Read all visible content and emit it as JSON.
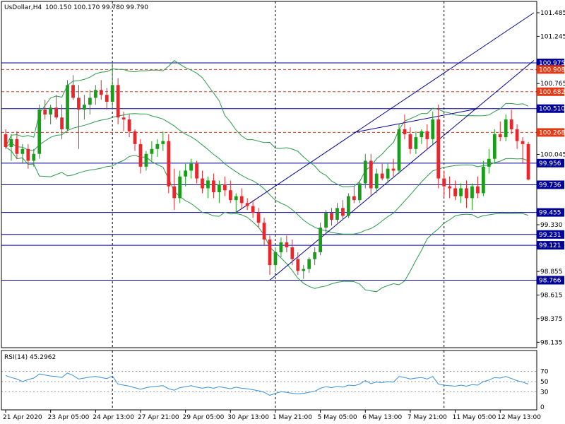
{
  "header": {
    "symbol_label": "UsDollar,H4",
    "ohlc_label": "100.150 100.170 99.780 99.790"
  },
  "rsi_panel": {
    "label": "RSI(14) 45.2962",
    "levels": [
      "70",
      "50",
      "30",
      "0"
    ]
  },
  "colors": {
    "bull_candle": "#1a9e1a",
    "bear_candle": "#e8262b",
    "bollinger": "#2a9a4a",
    "level_line": "#000099",
    "dash_line": "#d04020",
    "tag_blue": "#000099",
    "tag_red": "#e23a17",
    "rsi_line": "#3a8fd6"
  },
  "chart_data": {
    "type": "candlestick",
    "price_axis": {
      "ticks": [
        "101.485",
        "101.245",
        "100.765",
        "100.045",
        "99.330",
        "98.855",
        "98.615",
        "98.375",
        "98.135"
      ],
      "ylim": [
        98.08,
        101.6
      ]
    },
    "time_axis": {
      "labels": [
        "21 Apr 2020",
        "23 Apr 05:00",
        "24 Apr 13:00",
        "27 Apr 21:00",
        "29 Apr 05:00",
        "30 Apr 13:00",
        "1 May 21:00",
        "5 May 05:00",
        "6 May 13:00",
        "7 May 21:00",
        "11 May 05:00",
        "12 May 13:00"
      ],
      "label_bars": [
        0,
        8,
        16,
        24,
        32,
        40,
        48,
        56,
        64,
        72,
        80,
        88
      ]
    },
    "session_separators": [
      19,
      48,
      78
    ],
    "levels": [
      {
        "value": 100.975,
        "label": "100.975",
        "style": "solid"
      },
      {
        "value": 100.908,
        "label": "100.908",
        "style": "dashed"
      },
      {
        "value": 100.682,
        "label": "100.682",
        "style": "dashed"
      },
      {
        "value": 100.51,
        "label": "100.510",
        "style": "solid"
      },
      {
        "value": 100.268,
        "label": "100.268",
        "style": "dashed"
      },
      {
        "value": 99.956,
        "label": "99.956",
        "style": "solid"
      },
      {
        "value": 99.736,
        "label": "99.736",
        "style": "solid"
      },
      {
        "value": 99.455,
        "label": "99.455",
        "style": "solid"
      },
      {
        "value": 99.231,
        "label": "99.231",
        "style": "solid"
      },
      {
        "value": 99.121,
        "label": "99.121",
        "style": "solid"
      },
      {
        "value": 98.766,
        "label": "98.766",
        "style": "solid"
      }
    ],
    "trend_lines": [
      {
        "from": [
          41,
          99.455
        ],
        "to": [
          94,
          101.485
        ]
      },
      {
        "from": [
          47,
          98.766
        ],
        "to": [
          94,
          101.0
        ]
      },
      {
        "from": [
          62,
          100.268
        ],
        "to": [
          84,
          100.51
        ]
      }
    ],
    "candles": [
      [
        100.25,
        100.3,
        100.1,
        100.12
      ],
      [
        100.12,
        100.25,
        99.98,
        100.2
      ],
      [
        100.2,
        100.28,
        100.0,
        100.05
      ],
      [
        100.05,
        100.15,
        99.95,
        100.1
      ],
      [
        100.1,
        100.15,
        99.9,
        99.98
      ],
      [
        99.98,
        100.1,
        99.92,
        100.05
      ],
      [
        100.05,
        100.55,
        100.0,
        100.5
      ],
      [
        100.5,
        100.6,
        100.4,
        100.45
      ],
      [
        100.45,
        100.55,
        100.35,
        100.52
      ],
      [
        100.52,
        100.65,
        100.4,
        100.42
      ],
      [
        100.42,
        100.55,
        100.2,
        100.3
      ],
      [
        100.3,
        100.8,
        100.28,
        100.75
      ],
      [
        100.75,
        100.85,
        100.6,
        100.62
      ],
      [
        100.62,
        100.75,
        100.1,
        100.5
      ],
      [
        100.5,
        100.65,
        100.4,
        100.55
      ],
      [
        100.55,
        100.7,
        100.45,
        100.62
      ],
      [
        100.62,
        100.75,
        100.55,
        100.7
      ],
      [
        100.7,
        100.8,
        100.6,
        100.65
      ],
      [
        100.65,
        100.72,
        100.5,
        100.58
      ],
      [
        100.58,
        100.98,
        100.5,
        100.75
      ],
      [
        100.75,
        100.82,
        100.35,
        100.42
      ],
      [
        100.42,
        100.48,
        100.28,
        100.4
      ],
      [
        100.4,
        100.45,
        100.22,
        100.28
      ],
      [
        100.28,
        100.3,
        100.08,
        100.15
      ],
      [
        100.15,
        100.2,
        99.85,
        99.92
      ],
      [
        99.92,
        100.08,
        99.88,
        100.05
      ],
      [
        100.05,
        100.18,
        99.98,
        100.1
      ],
      [
        100.1,
        100.2,
        100.02,
        100.15
      ],
      [
        100.15,
        100.28,
        100.08,
        100.18
      ],
      [
        100.18,
        100.25,
        99.65,
        99.72
      ],
      [
        99.72,
        99.9,
        99.48,
        99.6
      ],
      [
        99.6,
        99.88,
        99.55,
        99.82
      ],
      [
        99.82,
        99.95,
        99.72,
        99.88
      ],
      [
        99.88,
        100.0,
        99.8,
        99.95
      ],
      [
        99.95,
        99.98,
        99.75,
        99.8
      ],
      [
        99.8,
        99.88,
        99.65,
        99.7
      ],
      [
        99.7,
        99.82,
        99.6,
        99.78
      ],
      [
        99.78,
        99.85,
        99.6,
        99.66
      ],
      [
        99.66,
        99.78,
        99.55,
        99.74
      ],
      [
        99.74,
        99.82,
        99.62,
        99.68
      ],
      [
        99.68,
        99.78,
        99.55,
        99.58
      ],
      [
        99.58,
        99.65,
        99.45,
        99.62
      ],
      [
        99.62,
        99.7,
        99.5,
        99.55
      ],
      [
        99.55,
        99.6,
        99.48,
        99.52
      ],
      [
        99.52,
        99.58,
        99.4,
        99.45
      ],
      [
        99.45,
        99.5,
        99.3,
        99.35
      ],
      [
        99.35,
        99.4,
        99.12,
        99.18
      ],
      [
        99.18,
        99.22,
        98.82,
        98.92
      ],
      [
        98.92,
        99.1,
        98.85,
        99.05
      ],
      [
        99.05,
        99.2,
        99.0,
        99.15
      ],
      [
        99.15,
        99.22,
        99.05,
        99.1
      ],
      [
        99.1,
        99.18,
        98.92,
        98.98
      ],
      [
        98.98,
        99.05,
        98.82,
        98.86
      ],
      [
        98.86,
        98.92,
        98.78,
        98.88
      ],
      [
        98.88,
        99.0,
        98.84,
        98.98
      ],
      [
        98.98,
        99.1,
        98.92,
        99.05
      ],
      [
        99.05,
        99.35,
        99.02,
        99.3
      ],
      [
        99.3,
        99.48,
        99.25,
        99.45
      ],
      [
        99.45,
        99.5,
        99.32,
        99.38
      ],
      [
        99.38,
        99.55,
        99.35,
        99.5
      ],
      [
        99.5,
        99.58,
        99.38,
        99.42
      ],
      [
        99.42,
        99.65,
        99.4,
        99.62
      ],
      [
        99.62,
        99.72,
        99.55,
        99.58
      ],
      [
        99.58,
        99.78,
        99.55,
        99.75
      ],
      [
        99.75,
        100.05,
        99.7,
        99.98
      ],
      [
        99.98,
        100.05,
        99.62,
        99.7
      ],
      [
        99.7,
        99.9,
        99.65,
        99.85
      ],
      [
        99.85,
        99.95,
        99.78,
        99.8
      ],
      [
        99.8,
        99.95,
        99.75,
        99.9
      ],
      [
        99.9,
        100.0,
        99.82,
        99.88
      ],
      [
        99.88,
        100.35,
        99.85,
        100.3
      ],
      [
        100.3,
        100.45,
        100.2,
        100.25
      ],
      [
        100.25,
        100.32,
        100.05,
        100.1
      ],
      [
        100.1,
        100.28,
        100.05,
        100.22
      ],
      [
        100.22,
        100.3,
        100.15,
        100.28
      ],
      [
        100.28,
        100.35,
        100.1,
        100.2
      ],
      [
        100.2,
        100.48,
        100.15,
        100.4
      ],
      [
        100.4,
        100.55,
        99.7,
        99.8
      ],
      [
        99.8,
        99.88,
        99.62,
        99.72
      ],
      [
        99.72,
        99.82,
        99.6,
        99.7
      ],
      [
        99.7,
        99.78,
        99.58,
        99.62
      ],
      [
        99.62,
        99.75,
        99.55,
        99.7
      ],
      [
        99.7,
        99.78,
        99.5,
        99.6
      ],
      [
        99.6,
        99.75,
        99.48,
        99.72
      ],
      [
        99.72,
        99.82,
        99.6,
        99.65
      ],
      [
        99.65,
        99.98,
        99.62,
        99.92
      ],
      [
        99.92,
        100.1,
        99.85,
        100.0
      ],
      [
        100.0,
        100.3,
        99.95,
        100.25
      ],
      [
        100.25,
        100.38,
        100.18,
        100.22
      ],
      [
        100.22,
        100.45,
        100.18,
        100.4
      ],
      [
        100.4,
        100.5,
        100.25,
        100.3
      ],
      [
        100.3,
        100.35,
        100.1,
        100.18
      ],
      [
        100.18,
        100.22,
        99.95,
        100.15
      ],
      [
        100.15,
        100.17,
        99.78,
        99.79
      ]
    ],
    "rsi": [
      62,
      58,
      55,
      50,
      54,
      57,
      65,
      63,
      61,
      60,
      58,
      67,
      62,
      55,
      57,
      59,
      60,
      58,
      56,
      61,
      45,
      43,
      41,
      38,
      35,
      38,
      40,
      41,
      42,
      36,
      33,
      38,
      40,
      42,
      39,
      37,
      39,
      37,
      40,
      38,
      36,
      39,
      37,
      36,
      34,
      32,
      29,
      23,
      27,
      30,
      29,
      27,
      26,
      27,
      29,
      31,
      37,
      40,
      38,
      41,
      39,
      43,
      42,
      45,
      52,
      46,
      49,
      48,
      50,
      49,
      60,
      58,
      55,
      57,
      58,
      55,
      60,
      45,
      43,
      42,
      41,
      43,
      41,
      44,
      43,
      50,
      53,
      58,
      57,
      60,
      56,
      52,
      49,
      45
    ]
  }
}
